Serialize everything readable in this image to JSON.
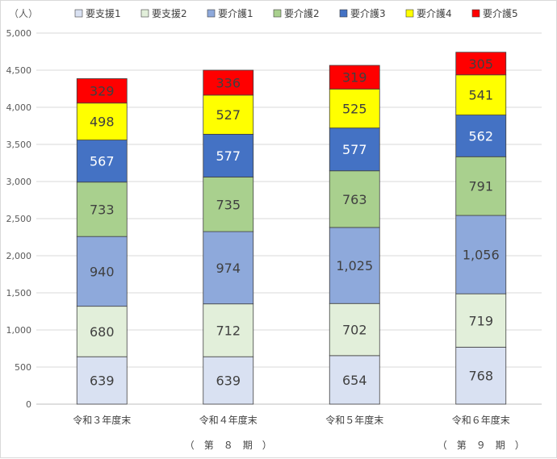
{
  "chart_data": {
    "type": "bar",
    "stacked": true,
    "unit_label": "（人）",
    "categories": [
      "令和３年度末",
      "令和４年度末",
      "令和５年度末",
      "令和６年度末"
    ],
    "period_labels": [
      "",
      "（　第　８　期　）",
      "",
      "（　第　９　期　）"
    ],
    "series": [
      {
        "name": "要支援1",
        "values": [
          639,
          639,
          654,
          768
        ],
        "labels": [
          "639",
          "639",
          "654",
          "768"
        ],
        "color": "#D9E1F2",
        "text_color": "#404040"
      },
      {
        "name": "要支援2",
        "values": [
          680,
          712,
          702,
          719
        ],
        "labels": [
          "680",
          "712",
          "702",
          "719"
        ],
        "color": "#E2EFDA",
        "text_color": "#404040"
      },
      {
        "name": "要介護1",
        "values": [
          940,
          974,
          1025,
          1056
        ],
        "labels": [
          "940",
          "974",
          "1,025",
          "1,056"
        ],
        "color": "#8EA9DB",
        "text_color": "#404040"
      },
      {
        "name": "要介護2",
        "values": [
          733,
          735,
          763,
          791
        ],
        "labels": [
          "733",
          "735",
          "763",
          "791"
        ],
        "color": "#A9D08E",
        "text_color": "#404040"
      },
      {
        "name": "要介護3",
        "values": [
          567,
          577,
          577,
          562
        ],
        "labels": [
          "567",
          "577",
          "577",
          "562"
        ],
        "color": "#4472C4",
        "text_color": "#ffffff"
      },
      {
        "name": "要介護4",
        "values": [
          498,
          527,
          525,
          541
        ],
        "labels": [
          "498",
          "527",
          "525",
          "541"
        ],
        "color": "#FFFF00",
        "text_color": "#404040"
      },
      {
        "name": "要介護5",
        "values": [
          329,
          336,
          319,
          305
        ],
        "labels": [
          "329",
          "336",
          "319",
          "305"
        ],
        "color": "#FF0000",
        "text_color": "#404040"
      }
    ],
    "ylim": [
      0,
      5000
    ],
    "yticks": [
      0,
      500,
      1000,
      1500,
      2000,
      2500,
      3000,
      3500,
      4000,
      4500,
      5000
    ],
    "ytick_labels": [
      "0",
      "500",
      "1,000",
      "1,500",
      "2,000",
      "2,500",
      "3,000",
      "3,500",
      "4,000",
      "4,500",
      "5,000"
    ],
    "grid": true,
    "legend_position": "top"
  }
}
